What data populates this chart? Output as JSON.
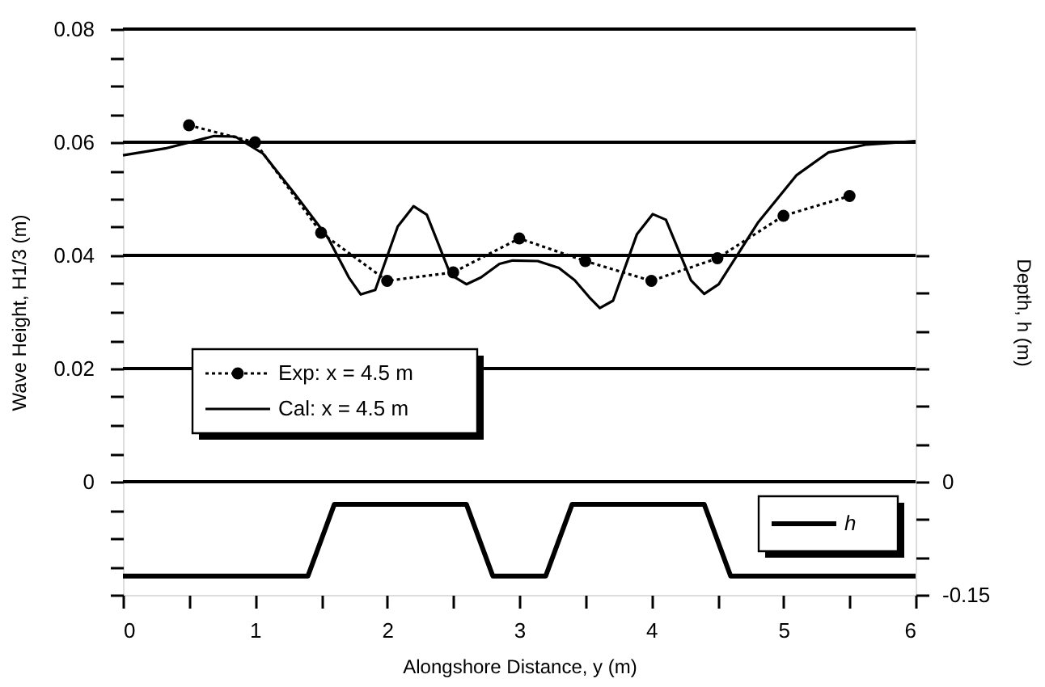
{
  "chart_data": {
    "type": "line",
    "xlabel": "Alongshore Distance,  y (m)",
    "ylabel": "Wave Height,  H1/3 (m)",
    "y2label": "Depth,  h (m)",
    "xlim": [
      0,
      6
    ],
    "xticks": [
      0,
      {
        "value": 0.5,
        "label": null
      },
      1,
      {
        "value": 1.5,
        "label": null
      },
      2,
      {
        "value": 2.5,
        "label": null
      },
      3,
      {
        "value": 3.5,
        "label": null
      },
      4,
      {
        "value": 4.5,
        "label": null
      },
      5,
      {
        "value": 5.5,
        "label": null
      },
      6
    ],
    "ylim": [
      -0.02,
      0.08
    ],
    "yticks": [
      {
        "value": -0.02,
        "label": null
      },
      {
        "value": -0.015,
        "label": null
      },
      {
        "value": -0.01,
        "label": null
      },
      {
        "value": -0.005,
        "label": null
      },
      0,
      {
        "value": 0.005,
        "label": null
      },
      {
        "value": 0.01,
        "label": null
      },
      {
        "value": 0.015,
        "label": null
      },
      0.02,
      {
        "value": 0.025,
        "label": null
      },
      {
        "value": 0.03,
        "label": null
      },
      {
        "value": 0.035,
        "label": null
      },
      0.04,
      {
        "value": 0.045,
        "label": null
      },
      {
        "value": 0.05,
        "label": null
      },
      {
        "value": 0.055,
        "label": null
      },
      0.06,
      {
        "value": 0.065,
        "label": null
      },
      {
        "value": 0.07,
        "label": null
      },
      {
        "value": 0.075,
        "label": null
      },
      0.08
    ],
    "y2lim": [
      -0.15,
      0.6
    ],
    "y2ticks": [
      -0.15,
      {
        "value": -0.1,
        "label": null
      },
      {
        "value": -0.05,
        "label": null
      },
      0,
      {
        "value": 0.05,
        "label": null
      },
      {
        "value": 0.1,
        "label": null
      },
      {
        "value": 0.15,
        "label": null
      },
      {
        "value": 0.2,
        "label": null
      },
      {
        "value": 0.25,
        "label": null
      },
      {
        "value": 0.3,
        "label": null
      }
    ],
    "grid": "y",
    "legend": "left",
    "series": [
      {
        "name": "Exp: x = 4.5 m",
        "color": "#000000",
        "marker": "circle",
        "line_style": "dotted",
        "x": [
          0.5,
          1.0,
          1.5,
          2.0,
          2.5,
          3.0,
          3.5,
          4.0,
          4.5,
          5.0,
          5.5
        ],
        "values": [
          0.063,
          0.06,
          0.044,
          0.0355,
          0.037,
          0.043,
          0.039,
          0.0355,
          0.0395,
          0.047,
          0.0505
        ]
      },
      {
        "name": "Cal: x = 4.5 m",
        "color": "#000000",
        "marker": "none",
        "line_style": "solid",
        "x": [
          0,
          0.32,
          0.69,
          0.85,
          1.06,
          1.3,
          1.55,
          1.71,
          1.8,
          1.91,
          2.08,
          2.2,
          2.3,
          2.48,
          2.6,
          2.71,
          2.85,
          2.95,
          3.14,
          3.3,
          3.42,
          3.53,
          3.61,
          3.71,
          3.89,
          4.01,
          4.11,
          4.3,
          4.4,
          4.51,
          4.81,
          5.1,
          5.34,
          5.63,
          6.0
        ],
        "values": [
          0.0577,
          0.0589,
          0.0611,
          0.061,
          0.058,
          0.0509,
          0.0432,
          0.0361,
          0.0331,
          0.0339,
          0.0451,
          0.0487,
          0.0472,
          0.0366,
          0.0349,
          0.0361,
          0.0385,
          0.0391,
          0.039,
          0.0378,
          0.0356,
          0.0326,
          0.0307,
          0.032,
          0.0437,
          0.0473,
          0.0463,
          0.0356,
          0.0332,
          0.0349,
          0.0459,
          0.0542,
          0.0582,
          0.0596,
          0.0602
        ]
      },
      {
        "name": "h",
        "color": "#000000",
        "marker": "none",
        "line_style": "solid",
        "axis": "y2",
        "x": [
          0,
          1.4,
          1.6,
          2.6,
          2.8,
          3.2,
          3.4,
          4.4,
          4.6,
          6
        ],
        "values": [
          -0.125,
          -0.125,
          -0.03,
          -0.03,
          -0.125,
          -0.125,
          -0.03,
          -0.03,
          -0.125,
          -0.125
        ]
      }
    ]
  }
}
